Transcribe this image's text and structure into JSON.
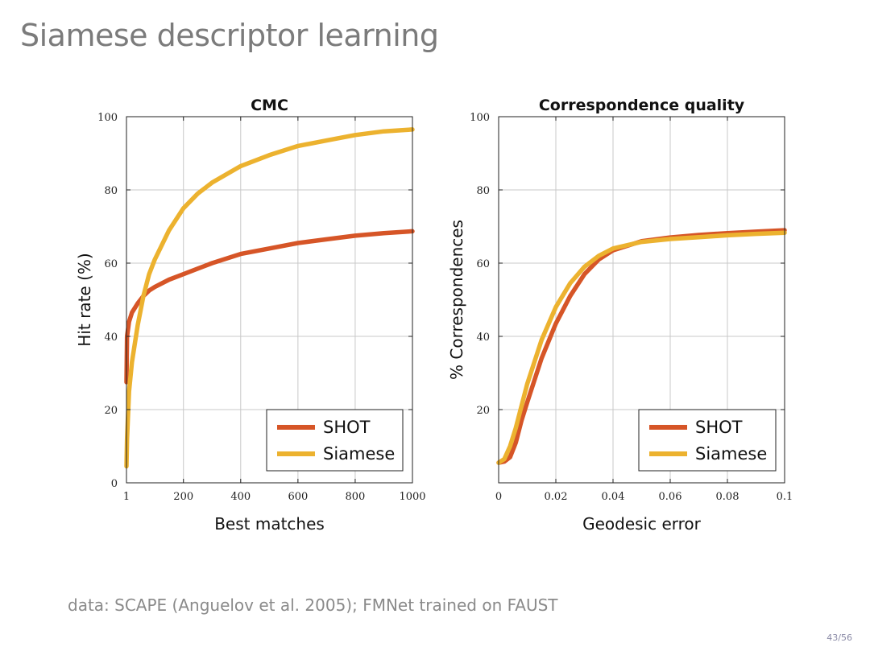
{
  "slide": {
    "title": "Siamese descriptor learning",
    "footer": "data: SCAPE (Anguelov et al. 2005); FMNet trained on FAUST",
    "page_number": "43/56"
  },
  "colors": {
    "shot": "#d65527",
    "siamese": "#ecb22f",
    "grid": "#c8c8c8",
    "axis": "#222222"
  },
  "chart_data": [
    {
      "type": "line",
      "title": "CMC",
      "xlabel": "Best matches",
      "ylabel": "Hit rate (%)",
      "xlim": [
        1,
        1000
      ],
      "ylim": [
        0,
        100
      ],
      "xticks": [
        1,
        200,
        400,
        600,
        800,
        1000
      ],
      "yticks": [
        0,
        20,
        40,
        60,
        80,
        100
      ],
      "grid": true,
      "legend_position": "bottom-right",
      "series": [
        {
          "name": "SHOT",
          "color": "#d65527",
          "x": [
            1,
            3,
            10,
            20,
            40,
            60,
            80,
            100,
            150,
            200,
            250,
            300,
            400,
            500,
            600,
            700,
            800,
            900,
            1000
          ],
          "y": [
            27.5,
            40,
            44,
            46.5,
            49,
            51,
            52.5,
            53.5,
            55.5,
            57,
            58.5,
            60,
            62.5,
            64,
            65.5,
            66.5,
            67.5,
            68.2,
            68.7
          ]
        },
        {
          "name": "Siamese",
          "color": "#ecb22f",
          "x": [
            1,
            3,
            10,
            20,
            40,
            60,
            80,
            100,
            150,
            200,
            250,
            300,
            400,
            500,
            600,
            700,
            800,
            900,
            1000
          ],
          "y": [
            4.5,
            12,
            25,
            33,
            43,
            51,
            57,
            61,
            69,
            75,
            79,
            82,
            86.5,
            89.5,
            92,
            93.5,
            95,
            96,
            96.5
          ]
        }
      ]
    },
    {
      "type": "line",
      "title": "Correspondence quality",
      "xlabel": "Geodesic error",
      "ylabel": "% Correspondences",
      "xlim": [
        0,
        0.1
      ],
      "ylim": [
        0,
        100
      ],
      "xticks": [
        0,
        0.02,
        0.04,
        0.06,
        0.08,
        0.1
      ],
      "yticks": [
        20,
        40,
        60,
        80,
        100
      ],
      "grid": true,
      "legend_position": "bottom-right",
      "series": [
        {
          "name": "SHOT",
          "color": "#d65527",
          "x": [
            0,
            0.002,
            0.004,
            0.006,
            0.008,
            0.01,
            0.015,
            0.02,
            0.025,
            0.03,
            0.035,
            0.04,
            0.05,
            0.06,
            0.07,
            0.08,
            0.09,
            0.1
          ],
          "y": [
            5.5,
            5.8,
            7,
            11,
            17,
            22,
            34,
            43.5,
            51,
            57,
            61,
            63.5,
            66,
            67,
            67.7,
            68.2,
            68.6,
            69
          ]
        },
        {
          "name": "Siamese",
          "color": "#ecb22f",
          "x": [
            0,
            0.002,
            0.004,
            0.006,
            0.008,
            0.01,
            0.015,
            0.02,
            0.025,
            0.03,
            0.035,
            0.04,
            0.05,
            0.06,
            0.07,
            0.08,
            0.09,
            0.1
          ],
          "y": [
            5.5,
            6.5,
            10,
            15,
            21,
            27,
            39,
            48,
            54.5,
            59,
            62,
            64,
            65.8,
            66.6,
            67.1,
            67.6,
            68,
            68.3
          ]
        }
      ]
    }
  ]
}
